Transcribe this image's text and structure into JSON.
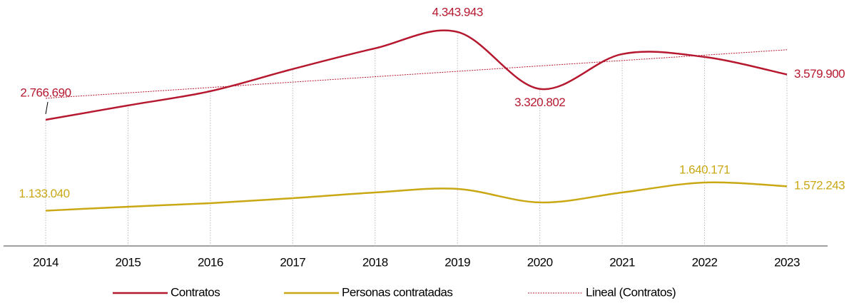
{
  "chart_data": {
    "type": "line",
    "categories": [
      "2014",
      "2015",
      "2016",
      "2017",
      "2018",
      "2019",
      "2020",
      "2021",
      "2022",
      "2023"
    ],
    "series": [
      {
        "name": "Contratos",
        "color": "#b5182f",
        "values": [
          2766690,
          3024000,
          3280000,
          3678000,
          4049000,
          4343943,
          3320802,
          3947000,
          3895000,
          3579900
        ],
        "value_labels": [
          "2.766.690",
          null,
          null,
          null,
          null,
          "4.343.943",
          "3.320.802",
          null,
          null,
          "3.579.900"
        ]
      },
      {
        "name": "Personas contratadas",
        "color": "#c9a814",
        "values": [
          1133040,
          1205000,
          1269000,
          1358000,
          1461000,
          1525000,
          1282000,
          1461000,
          1640171,
          1572243
        ],
        "value_labels": [
          "1.133.040",
          null,
          null,
          null,
          null,
          null,
          null,
          null,
          "1.640.171",
          "1.572.243"
        ]
      }
    ],
    "trendline": {
      "name": "Lineal (Contratos)",
      "color": "#b5182f",
      "series": 0
    },
    "ylim": [
      500000,
      4700000
    ],
    "smooth": true
  }
}
